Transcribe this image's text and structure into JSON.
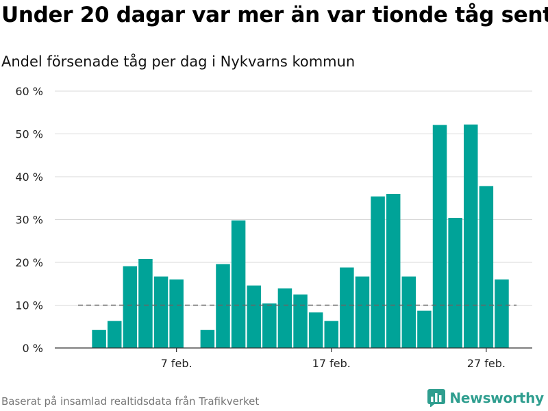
{
  "header": {
    "title": "Under 20 dagar var mer än var tionde tåg sent",
    "subtitle": "Andel försenade tåg per dag i Nykvarns kommun"
  },
  "footer": {
    "source": "Baserat på insamlad realtidsdata från Trafikverket",
    "brand": "Newsworthy",
    "brand_icon": "bar-chart-logo-icon"
  },
  "colors": {
    "bar": "#00a398",
    "reference_line": "#666666",
    "grid": "#d9d9d9",
    "brand": "#2f9e8f"
  },
  "chart_data": {
    "type": "bar",
    "title": "Under 20 dagar var mer än var tionde tåg sent",
    "subtitle": "Andel försenade tåg per dag i Nykvarns kommun",
    "xlabel": "",
    "ylabel": "",
    "y_unit": "%",
    "ylim": [
      0,
      60
    ],
    "y_ticks": [
      0,
      10,
      20,
      30,
      40,
      50,
      60
    ],
    "y_tick_labels": [
      "0 %",
      "10 %",
      "20 %",
      "30 %",
      "40 %",
      "50 %",
      "60 %"
    ],
    "x_tick_labels": [
      {
        "date": "2020-02-07",
        "label": "7 feb."
      },
      {
        "date": "2020-02-17",
        "label": "17 feb."
      },
      {
        "date": "2020-02-27",
        "label": "27 feb."
      }
    ],
    "grid": true,
    "reference_line": {
      "value": 10,
      "style": "dashed",
      "from": "2020-02-01",
      "to": "2020-02-29"
    },
    "series": [
      {
        "x": [
          "2020-02-01",
          "2020-02-02",
          "2020-02-03",
          "2020-02-04",
          "2020-02-05",
          "2020-02-06",
          "2020-02-07",
          "2020-02-08",
          "2020-02-09",
          "2020-02-10",
          "2020-02-11",
          "2020-02-12",
          "2020-02-13",
          "2020-02-14",
          "2020-02-15",
          "2020-02-16",
          "2020-02-17",
          "2020-02-18",
          "2020-02-19",
          "2020-02-20",
          "2020-02-21",
          "2020-02-22",
          "2020-02-23",
          "2020-02-24",
          "2020-02-25",
          "2020-02-26",
          "2020-02-27",
          "2020-02-28",
          "2020-02-29"
        ],
        "values": [
          null,
          4.2,
          6.3,
          19.1,
          20.8,
          16.7,
          16.0,
          null,
          4.2,
          19.6,
          29.8,
          14.6,
          10.4,
          13.9,
          12.5,
          8.3,
          6.3,
          18.8,
          16.7,
          35.4,
          36.0,
          16.7,
          8.7,
          52.1,
          30.4,
          52.2,
          37.8,
          16.0,
          null
        ]
      }
    ]
  }
}
